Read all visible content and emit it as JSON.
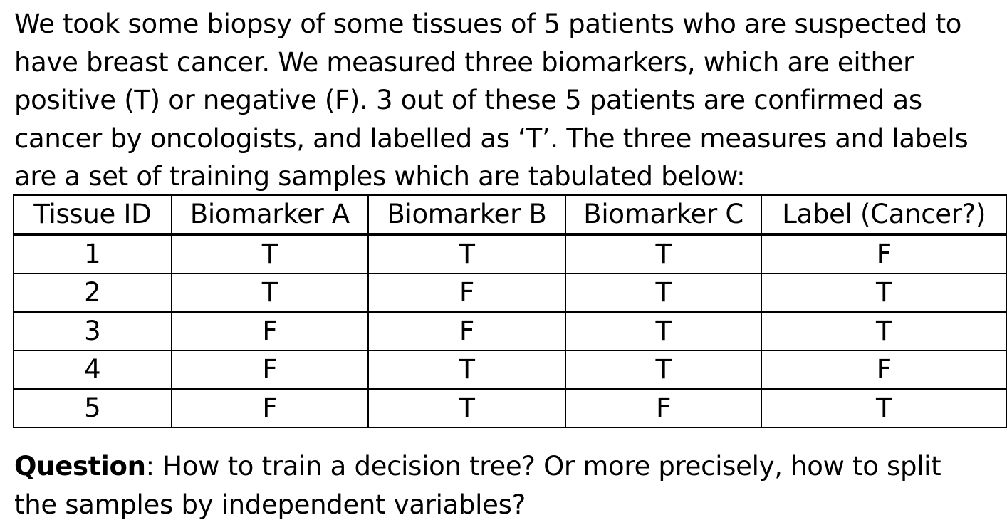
{
  "intro": {
    "lines": [
      "We took some biopsy of some tissues of 5 patients who are suspected to",
      "have breast cancer. We measured three biomarkers, which are either",
      "positive (T) or negative (F). 3 out of these 5 patients are confirmed as",
      "cancer by oncologists, and labelled as ‘T’. The three measures and labels",
      "are a set of training samples which are tabulated below:"
    ]
  },
  "table": {
    "headers": [
      "Tissue ID",
      "Biomarker A",
      "Biomarker B",
      "Biomarker C",
      "Label (Cancer?)"
    ],
    "rows": [
      [
        "1",
        "T",
        "T",
        "T",
        "F"
      ],
      [
        "2",
        "T",
        "F",
        "T",
        "T"
      ],
      [
        "3",
        "F",
        "F",
        "T",
        "T"
      ],
      [
        "4",
        "F",
        "T",
        "T",
        "F"
      ],
      [
        "5",
        "F",
        "T",
        "F",
        "T"
      ]
    ]
  },
  "question": {
    "label": "Question",
    "line1_rest": ": How to train a decision tree? Or more precisely, how to split",
    "line2": "the samples by independent variables?"
  }
}
